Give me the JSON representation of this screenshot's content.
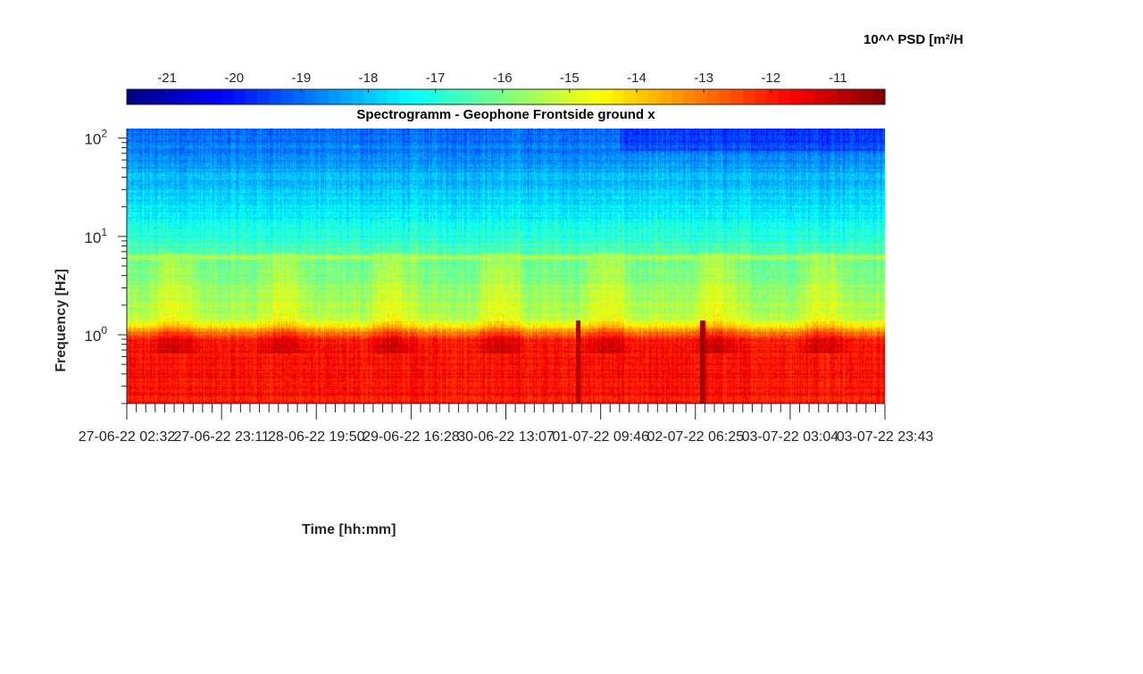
{
  "chart_data": {
    "type": "heatmap",
    "title": "Spectrogramm - Geophone Frontside ground x",
    "xlabel": "Time [hh:mm]",
    "ylabel": "Frequency [Hz]",
    "y_scale": "log",
    "ylim": [
      0.2,
      125
    ],
    "y_ticks": [
      1,
      10,
      100
    ],
    "y_tick_labels": [
      {
        "base": "10",
        "exp": "0"
      },
      {
        "base": "10",
        "exp": "1"
      },
      {
        "base": "10",
        "exp": "2"
      }
    ],
    "x_tick_labels": [
      "27-06-22 02:32",
      "27-06-22 23:11",
      "28-06-22 19:50",
      "29-06-22 16:28",
      "30-06-22 13:07",
      "01-07-22 09:46",
      "02-07-22 06:25",
      "03-07-22 03:04",
      "03-07-22 23:43"
    ],
    "colorbar": {
      "label": "10^^ PSD [m²/H",
      "colormap": "jet",
      "clim": [
        -21.6,
        -10.3
      ],
      "ticks": [
        -21,
        -20,
        -19,
        -18,
        -17,
        -16,
        -15,
        -14,
        -13,
        -12,
        -11
      ]
    },
    "features": {
      "persistent_line_hz": 6.2,
      "bursts_at_time_fraction": [
        0.595,
        0.76
      ]
    },
    "grid": false
  }
}
